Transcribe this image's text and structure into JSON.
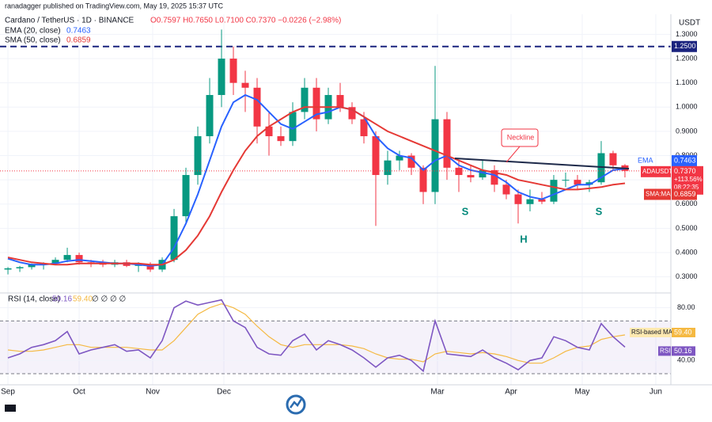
{
  "header": {
    "publisher": "ranadagger published on TradingView.com, May 19, 2025 15:37 UTC",
    "symbol": "Cardano / TetherUS · 1D · BINANCE",
    "ohlc_text": "O0.7597 H0.7650 L0.7100 C0.7370 −0.0226 (−2.98%)",
    "currency": "USDT"
  },
  "chart_data": [
    {
      "type": "candlestick",
      "open": [
        0.33,
        0.335,
        0.34,
        0.35,
        0.355,
        0.37,
        0.39,
        0.36,
        0.355,
        0.35,
        0.36,
        0.345,
        0.35,
        0.33,
        0.37,
        0.55,
        0.72,
        0.88,
        1.05,
        1.2,
        1.1,
        1.08,
        0.92,
        0.88,
        0.86,
        0.98,
        1.08,
        0.95,
        1.05,
        1.0,
        0.95,
        0.88,
        0.72,
        0.78,
        0.8,
        0.75,
        0.65,
        0.95,
        0.75,
        0.72,
        0.71,
        0.74,
        0.68,
        0.64,
        0.6,
        0.62,
        0.61,
        0.7,
        0.7,
        0.68,
        0.69,
        0.81,
        0.7597
      ],
      "high": [
        0.34,
        0.345,
        0.355,
        0.36,
        0.38,
        0.42,
        0.4,
        0.37,
        0.37,
        0.37,
        0.37,
        0.36,
        0.36,
        0.38,
        0.58,
        0.75,
        0.92,
        1.12,
        1.32,
        1.25,
        1.15,
        1.12,
        0.98,
        0.92,
        1.02,
        1.12,
        1.12,
        1.08,
        1.1,
        1.02,
        0.98,
        0.9,
        0.82,
        0.82,
        0.81,
        0.76,
        1.17,
        0.98,
        0.78,
        0.76,
        0.78,
        0.76,
        0.7,
        0.66,
        0.66,
        0.65,
        0.72,
        0.73,
        0.72,
        0.7,
        0.86,
        0.82,
        0.765
      ],
      "low": [
        0.31,
        0.32,
        0.33,
        0.33,
        0.35,
        0.36,
        0.35,
        0.34,
        0.34,
        0.34,
        0.34,
        0.32,
        0.32,
        0.32,
        0.36,
        0.52,
        0.68,
        0.85,
        1.0,
        1.05,
        0.98,
        0.85,
        0.8,
        0.84,
        0.84,
        0.95,
        0.9,
        0.93,
        0.98,
        0.93,
        0.85,
        0.51,
        0.68,
        0.74,
        0.72,
        0.6,
        0.6,
        0.7,
        0.65,
        0.69,
        0.7,
        0.65,
        0.62,
        0.52,
        0.57,
        0.6,
        0.6,
        0.67,
        0.66,
        0.65,
        0.68,
        0.74,
        0.71
      ],
      "close": [
        0.335,
        0.34,
        0.35,
        0.355,
        0.37,
        0.39,
        0.36,
        0.355,
        0.35,
        0.36,
        0.345,
        0.35,
        0.33,
        0.37,
        0.55,
        0.72,
        0.88,
        1.05,
        1.2,
        1.1,
        1.08,
        0.92,
        0.88,
        0.86,
        0.98,
        1.08,
        0.95,
        1.05,
        1.0,
        0.95,
        0.88,
        0.72,
        0.78,
        0.8,
        0.75,
        0.65,
        0.95,
        0.75,
        0.72,
        0.71,
        0.74,
        0.68,
        0.64,
        0.6,
        0.62,
        0.61,
        0.7,
        0.7,
        0.68,
        0.69,
        0.81,
        0.76,
        0.737
      ],
      "up_color": "#089981",
      "down_color": "#f23645",
      "overlays": [
        {
          "name": "EMA (20, close)",
          "badge": "EMA",
          "color": "#2962ff",
          "values": [
            0.375,
            0.36,
            0.35,
            0.35,
            0.355,
            0.365,
            0.37,
            0.365,
            0.36,
            0.355,
            0.355,
            0.35,
            0.345,
            0.35,
            0.42,
            0.52,
            0.64,
            0.78,
            0.92,
            1.02,
            1.05,
            1.03,
            0.98,
            0.93,
            0.91,
            0.94,
            0.97,
            0.98,
            1.0,
            0.99,
            0.96,
            0.88,
            0.83,
            0.8,
            0.79,
            0.74,
            0.78,
            0.8,
            0.76,
            0.74,
            0.73,
            0.72,
            0.69,
            0.65,
            0.63,
            0.62,
            0.64,
            0.66,
            0.68,
            0.68,
            0.71,
            0.74,
            0.7463
          ]
        },
        {
          "name": "SMA (50, close)",
          "badge": "SMA:MA",
          "color": "#e53935",
          "values": [
            0.38,
            0.37,
            0.36,
            0.355,
            0.35,
            0.35,
            0.355,
            0.355,
            0.355,
            0.355,
            0.355,
            0.355,
            0.35,
            0.35,
            0.37,
            0.41,
            0.47,
            0.55,
            0.65,
            0.74,
            0.82,
            0.88,
            0.92,
            0.95,
            0.98,
            1.0,
            1.0,
            1.0,
            1.0,
            0.99,
            0.96,
            0.93,
            0.9,
            0.88,
            0.86,
            0.84,
            0.82,
            0.8,
            0.78,
            0.76,
            0.74,
            0.73,
            0.72,
            0.7,
            0.69,
            0.68,
            0.67,
            0.66,
            0.66,
            0.665,
            0.67,
            0.68,
            0.6859
          ]
        }
      ],
      "last_close_label": "0.7370",
      "symbol_badge": "ADAUSDT",
      "change_label": "+113.56%",
      "countdown": "08:22:35",
      "horizontal_line": {
        "value": 1.25,
        "label": "1.2500",
        "color": "#1a237e"
      },
      "annotations": [
        "Neckline",
        "S",
        "H",
        "S"
      ],
      "xlim": [
        -0.67,
        55.87
      ],
      "xticks": [
        {
          "value": 0,
          "label": "Sep"
        },
        {
          "value": 6,
          "label": "Oct"
        },
        {
          "value": 12.2,
          "label": "Nov"
        },
        {
          "value": 18.2,
          "label": "Dec"
        },
        {
          "value": 36.2,
          "label": "Mar"
        },
        {
          "value": 42.4,
          "label": "Apr"
        },
        {
          "value": 48.4,
          "label": "May"
        },
        {
          "value": 54.6,
          "label": "Jun"
        }
      ],
      "ylim": [
        0.24,
        1.37
      ],
      "yticks": [
        {
          "value": 0.3,
          "label": "0.3000"
        },
        {
          "value": 0.4,
          "label": "0.4000"
        },
        {
          "value": 0.5,
          "label": "0.5000"
        },
        {
          "value": 0.6,
          "label": "0.6000"
        },
        {
          "value": 0.7,
          "label": "0.7000"
        },
        {
          "value": 0.8,
          "label": "0.8000"
        },
        {
          "value": 0.9,
          "label": "0.9000"
        },
        {
          "value": 1.0,
          "label": "1.0000"
        },
        {
          "value": 1.1,
          "label": "1.1000"
        },
        {
          "value": 1.2,
          "label": "1.2000"
        },
        {
          "value": 1.3,
          "label": "1.3000"
        }
      ]
    },
    {
      "type": "line",
      "title": "RSI (14, close)",
      "extra": "∅ ∅ ∅ ∅",
      "series": [
        {
          "name": "RSI",
          "color": "#7e57c2",
          "last_label": "50.16",
          "values": [
            42,
            45,
            50,
            52,
            55,
            62,
            45,
            48,
            50,
            52,
            47,
            48,
            42,
            55,
            80,
            85,
            82,
            84,
            86,
            70,
            65,
            50,
            45,
            44,
            55,
            60,
            48,
            55,
            52,
            48,
            42,
            35,
            42,
            44,
            40,
            32,
            70,
            45,
            44,
            43,
            48,
            42,
            38,
            33,
            40,
            42,
            58,
            55,
            50,
            48,
            68,
            58,
            50.16
          ]
        },
        {
          "name": "RSI-based MA",
          "color": "#f5b942",
          "last_label": "59.40",
          "values": [
            48,
            47,
            47,
            48,
            50,
            52,
            52,
            50,
            50,
            50,
            50,
            49,
            48,
            48,
            55,
            65,
            75,
            80,
            83,
            80,
            75,
            66,
            58,
            52,
            50,
            52,
            52,
            52,
            52,
            51,
            49,
            45,
            42,
            41,
            41,
            39,
            45,
            47,
            46,
            45,
            46,
            45,
            43,
            40,
            38,
            38,
            42,
            47,
            50,
            51,
            56,
            58,
            59.4
          ]
        }
      ],
      "band": [
        30,
        70
      ],
      "ylim": [
        24,
        90
      ],
      "yticks": [
        {
          "value": 80,
          "label": "80.00"
        },
        {
          "value": 40,
          "label": "40.00"
        }
      ]
    }
  ]
}
